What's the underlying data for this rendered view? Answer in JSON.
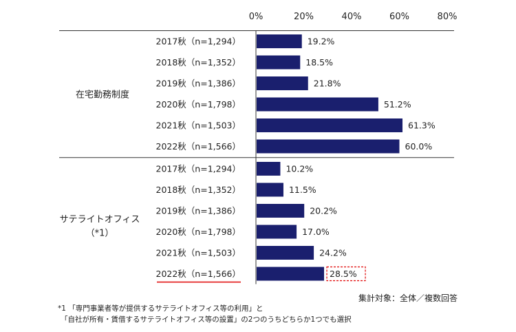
{
  "chart_data": {
    "type": "bar",
    "orientation": "horizontal",
    "xlim": [
      0,
      80
    ],
    "ticks": [
      "0%",
      "20%",
      "40%",
      "60%",
      "80%"
    ],
    "bar_color": "#1a1f6e",
    "highlight_color": "#e00000",
    "groups": [
      {
        "label": "在宅勤務制度",
        "categories": [
          "2017秋（n=1,294）",
          "2018秋（n=1,352）",
          "2019秋（n=1,386）",
          "2020秋（n=1,798）",
          "2021秋（n=1,503）",
          "2022秋（n=1,566）"
        ],
        "values": [
          19.2,
          18.5,
          21.8,
          51.2,
          61.3,
          60.0
        ],
        "value_labels": [
          "19.2%",
          "18.5%",
          "21.8%",
          "51.2%",
          "61.3%",
          "60.0%"
        ]
      },
      {
        "label": "サテライトオフィス",
        "label_line2": "（*1）",
        "categories": [
          "2017秋（n=1,294）",
          "2018秋（n=1,352）",
          "2019秋（n=1,386）",
          "2020秋（n=1,798）",
          "2021秋（n=1,503）",
          "2022秋（n=1,566）"
        ],
        "values": [
          10.2,
          11.5,
          20.2,
          17.0,
          24.2,
          28.5
        ],
        "value_labels": [
          "10.2%",
          "11.5%",
          "20.2%",
          "17.0%",
          "24.2%",
          "28.5%"
        ],
        "highlight_last": true
      }
    ]
  },
  "note": "集計対象：全体／複数回答",
  "footnotes": [
    "*1 「専門事業者等が提供するサテライトオフィス等の利用」と",
    "「自社が所有・賃借するサテライトオフィス等の設置」の2つのうちどちらか1つでも選択"
  ]
}
